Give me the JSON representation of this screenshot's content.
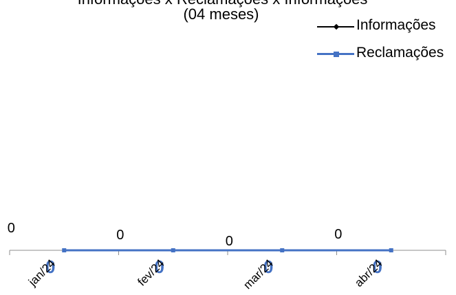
{
  "title": {
    "line1": "Informações x Reclamações x Informações",
    "line2": "(04 meses)"
  },
  "colors": {
    "informacoes": "#000000",
    "reclamacoes": "#4472C4",
    "axis": "#8c8c8c",
    "labels": "#000000"
  },
  "legend": {
    "position": "top-right",
    "items": [
      {
        "label": "Informações",
        "marker": "diamond"
      },
      {
        "label": "Reclamações",
        "marker": "square"
      }
    ]
  },
  "chart_data": {
    "type": "line",
    "categories": [
      "jan/24",
      "fev/24",
      "mar/24",
      "abr/24"
    ],
    "series": [
      {
        "name": "Informações",
        "values": [
          0,
          0,
          0,
          0
        ]
      },
      {
        "name": "Reclamações",
        "values": [
          0,
          0,
          0,
          0
        ]
      }
    ],
    "data_labels": {
      "Informações": [
        "0",
        "0",
        "0",
        "0"
      ],
      "Reclamações": [
        "0",
        "0",
        "0",
        "0"
      ]
    },
    "grid": false,
    "ylim": [
      0,
      1
    ],
    "xlabel": "",
    "ylabel": ""
  }
}
